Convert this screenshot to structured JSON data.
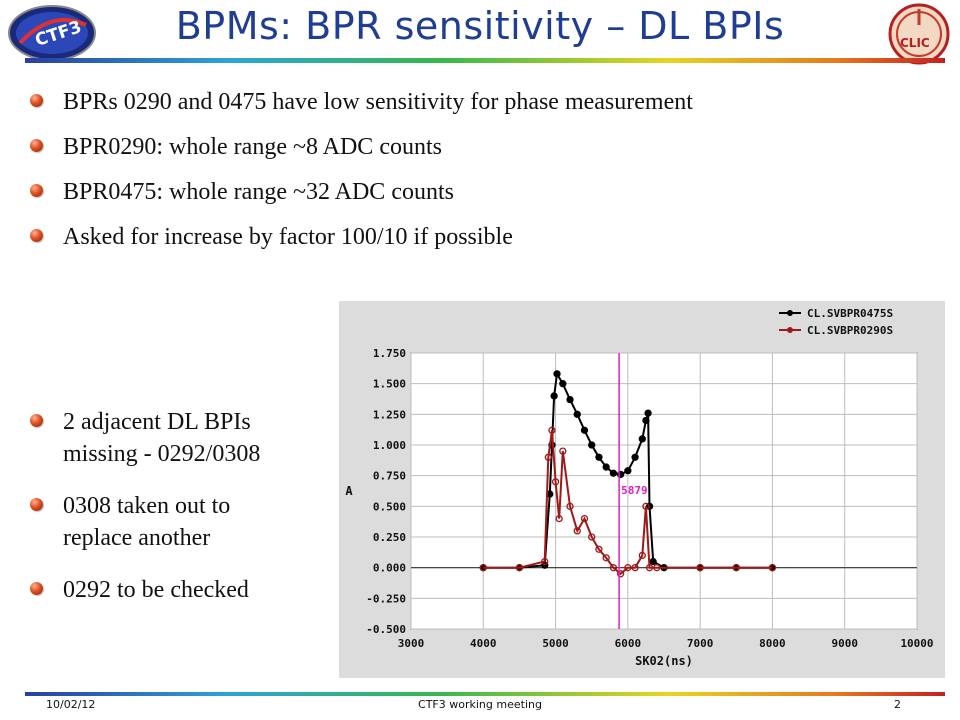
{
  "slide": {
    "title": "BPMs: BPR sensitivity – DL BPIs",
    "logo_left_text": "CTF3",
    "logo_right_text": "CLIC"
  },
  "bullets_top": [
    "BPRs 0290 and 0475 have low sensitivity for phase measurement",
    "BPR0290: whole range ~8 ADC counts",
    "BPR0475: whole range ~32 ADC counts",
    "Asked for increase by factor 100/10 if possible"
  ],
  "bullets_side": [
    {
      "line1": "2 adjacent DL BPIs",
      "line2": "missing - 0292/0308"
    },
    {
      "line1": "0308 taken out to",
      "line2": "replace another"
    },
    {
      "line1": "0292 to be checked",
      "line2": ""
    }
  ],
  "footer": {
    "date": "10/02/12",
    "center": "CTF3 working meeting",
    "page": "2"
  },
  "colors": {
    "title": "#1f3e93",
    "series_0475": "#000000",
    "series_0290": "#a01818",
    "cursor": "#e020c0"
  },
  "chart_data": {
    "type": "line",
    "xlabel": "SK02(ns)",
    "ylabel": "A",
    "xlim": [
      3000,
      10000
    ],
    "ylim": [
      -0.5,
      1.75
    ],
    "x_ticks": [
      3000,
      4000,
      5000,
      6000,
      7000,
      8000,
      9000,
      10000
    ],
    "y_ticks": [
      1.75,
      1.5,
      1.25,
      1.0,
      0.75,
      0.5,
      0.25,
      0.0,
      -0.25,
      -0.5
    ],
    "y_tick_labels": [
      "1.750",
      "1.500",
      "1.250",
      "1.000",
      "0.750",
      "0.500",
      "0.250",
      "0.000",
      "-0.250",
      "-0.500"
    ],
    "grid": true,
    "legend_position": "top-right",
    "cursor": {
      "x": 5879,
      "label": "5879"
    },
    "series": [
      {
        "name": "CL.SVBPR0475S",
        "x": [
          4000,
          4500,
          4850,
          4920,
          4950,
          4980,
          5020,
          5100,
          5200,
          5300,
          5400,
          5500,
          5600,
          5700,
          5800,
          5900,
          6000,
          6100,
          6200,
          6250,
          6280,
          6300,
          6350,
          6500,
          7000,
          7500,
          8000
        ],
        "y": [
          0.0,
          0.0,
          0.02,
          0.6,
          1.0,
          1.4,
          1.58,
          1.5,
          1.37,
          1.25,
          1.12,
          1.0,
          0.9,
          0.82,
          0.77,
          0.76,
          0.79,
          0.9,
          1.05,
          1.2,
          1.26,
          0.5,
          0.05,
          0.0,
          0.0,
          0.0,
          0.0
        ]
      },
      {
        "name": "CL.SVBPR0290S",
        "x": [
          4000,
          4500,
          4850,
          4900,
          4950,
          5000,
          5050,
          5100,
          5200,
          5300,
          5400,
          5500,
          5600,
          5700,
          5800,
          5900,
          6000,
          6100,
          6200,
          6250,
          6300,
          6400,
          7000,
          7500,
          8000
        ],
        "y": [
          0.0,
          0.0,
          0.05,
          0.9,
          1.12,
          0.7,
          0.4,
          0.95,
          0.5,
          0.3,
          0.4,
          0.25,
          0.15,
          0.08,
          0.0,
          -0.05,
          0.0,
          0.0,
          0.1,
          0.5,
          0.0,
          0.0,
          0.0,
          0.0,
          0.0
        ]
      }
    ]
  }
}
